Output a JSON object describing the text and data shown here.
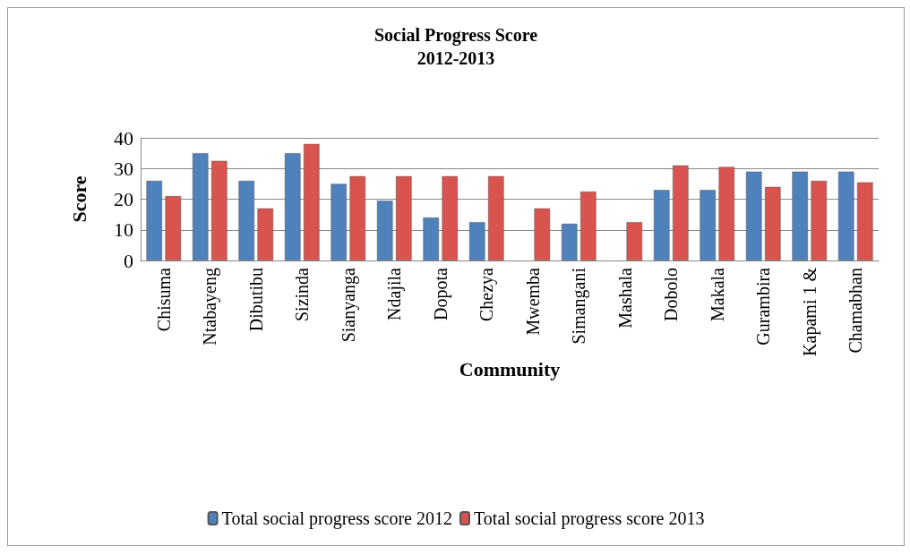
{
  "chart_data": {
    "type": "bar",
    "title": "Social Progress Score\n2012-2013",
    "xlabel": "Community",
    "ylabel": "Score",
    "categories": [
      "Chisuma",
      "Ntabayeng",
      "Dibutibu",
      "Sizinda",
      "Sianyanga",
      "Ndajila",
      "Dopota",
      "Chezya",
      "Mwemba",
      "Simangani",
      "Mashala",
      "Dobolo",
      "Makala",
      "Gurambira",
      "Kapami 1 &",
      "Chamabhan"
    ],
    "series": [
      {
        "name": "Total social progress score 2012",
        "color": "#4f81bd",
        "values": [
          26,
          35,
          26,
          35,
          25,
          19.5,
          14,
          12.5,
          null,
          12,
          null,
          23,
          23,
          29,
          29,
          29
        ]
      },
      {
        "name": "Total social progress score 2013",
        "color": "#d9534f",
        "values": [
          21,
          32.5,
          17,
          38,
          27.5,
          27.5,
          27.5,
          27.5,
          17,
          22.5,
          12.5,
          31,
          30.5,
          24,
          26,
          25.5
        ]
      }
    ],
    "ylim": [
      0,
      40
    ],
    "yticks": [
      0,
      10,
      20,
      30,
      40
    ],
    "grid": "y",
    "legend": "bottom"
  }
}
